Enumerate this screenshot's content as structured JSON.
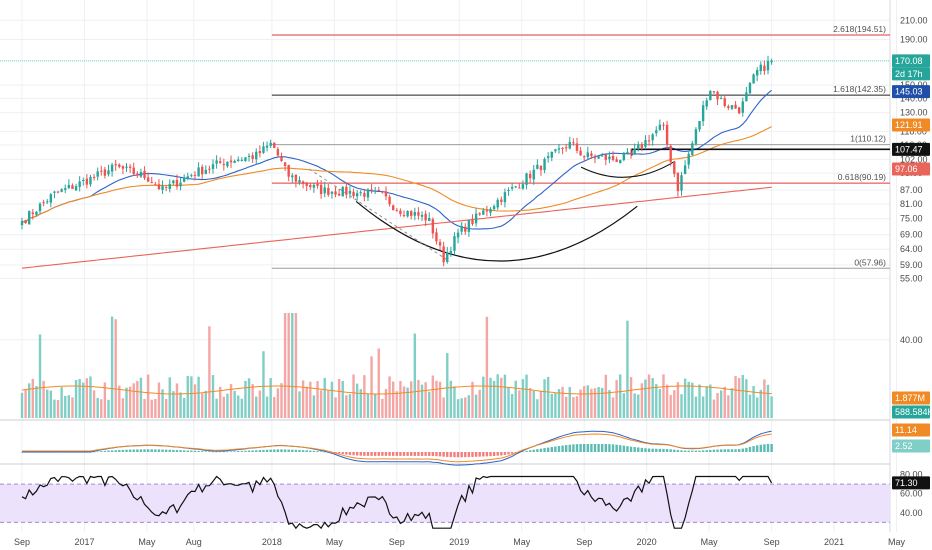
{
  "colors": {
    "up": "#26a69a",
    "down": "#ef5350",
    "vol_up": "#7fcfc6",
    "vol_down": "#f4a6a4",
    "ma_short": "#2e63c8",
    "ma_mid": "#f08a24",
    "ma_long": "#e8655a",
    "fib_red": "#e53935",
    "fib_black": "#222222",
    "rsi_fill": "#ece2fb",
    "rsi_band": "#a58ad6",
    "grid": "#eef0f3"
  },
  "price_tags": [
    {
      "label": "170.08",
      "value": 170.08,
      "color": "#26a69a"
    },
    {
      "label": "2d 17h",
      "value": 161.5,
      "color": "#26a69a"
    },
    {
      "label": "145.03",
      "value": 145.03,
      "color": "#1f4fa8"
    },
    {
      "label": "121.91",
      "value": 121.91,
      "color": "#f08a24"
    },
    {
      "label": "107.47",
      "value": 107.47,
      "color": "#111111"
    },
    {
      "label": "97.06",
      "value": 97.06,
      "color": "#e8655a"
    }
  ],
  "lower_tags": {
    "volume_ma": {
      "label": "1.877M",
      "color": "#f08a24"
    },
    "volume": {
      "label": "588.584K",
      "color": "#26a69a"
    },
    "macd": {
      "label": "11.14",
      "color": "#f08a24"
    },
    "signal": {
      "label": "2.52",
      "color": "#7fcfc6"
    },
    "rsi": {
      "label": "71.30",
      "color": "#111111"
    }
  },
  "fib_levels": [
    {
      "label": "2.618(194.51)",
      "value": 194.51,
      "color": "#e53935"
    },
    {
      "label": "1.618(142.35)",
      "value": 142.35,
      "color": "#222222"
    },
    {
      "label": "1(110.12)",
      "value": 110.12,
      "color": "#9e9e9e"
    },
    {
      "label": "0.618(90.19)",
      "value": 90.19,
      "color": "#e53935"
    },
    {
      "label": "0(57.96)",
      "value": 57.96,
      "color": "#9e9e9e"
    }
  ],
  "chart_data": {
    "type": "candlestick",
    "interval": "weekly",
    "scale": "log",
    "x_start": "2016-09",
    "x_end": "2021-08",
    "x_labels": [
      "Sep",
      "2017",
      "May",
      "Aug",
      "2018",
      "May",
      "Sep",
      "2019",
      "May",
      "Sep",
      "2020",
      "May",
      "Sep",
      "2021",
      "May"
    ],
    "y_ticks": [
      40.0,
      55.0,
      59.0,
      64.0,
      69.0,
      75.0,
      81.0,
      87.0,
      95.0,
      102.0,
      110.0,
      118.0,
      130.0,
      140.0,
      150.0,
      170.0,
      190.0,
      210.0
    ],
    "y_tick_labels": [
      "40.00",
      "55.00",
      "59.00",
      "64.00",
      "69.00",
      "75.00",
      "81.00",
      "87.00",
      "95.00",
      "102.00",
      "110.00",
      "118.00",
      "130.00",
      "140.00",
      "150.00",
      "170.00",
      "190.00",
      "210.00"
    ],
    "last_price": 170.08,
    "price_path": [
      {
        "date": "2016-09",
        "close": 74
      },
      {
        "date": "2016-11",
        "close": 85
      },
      {
        "date": "2017-01",
        "close": 91
      },
      {
        "date": "2017-03",
        "close": 98
      },
      {
        "date": "2017-05",
        "close": 93
      },
      {
        "date": "2017-06",
        "close": 87
      },
      {
        "date": "2017-08",
        "close": 95
      },
      {
        "date": "2017-10",
        "close": 101
      },
      {
        "date": "2017-12",
        "close": 104
      },
      {
        "date": "2018-01",
        "close": 111
      },
      {
        "date": "2018-02",
        "close": 94
      },
      {
        "date": "2018-04",
        "close": 87
      },
      {
        "date": "2018-06",
        "close": 86
      },
      {
        "date": "2018-08",
        "close": 85
      },
      {
        "date": "2018-09",
        "close": 79
      },
      {
        "date": "2018-11",
        "close": 75
      },
      {
        "date": "2018-12",
        "close": 61
      },
      {
        "date": "2019-01",
        "close": 70
      },
      {
        "date": "2019-03",
        "close": 80
      },
      {
        "date": "2019-05",
        "close": 91
      },
      {
        "date": "2019-07",
        "close": 104
      },
      {
        "date": "2019-08",
        "close": 111
      },
      {
        "date": "2019-09",
        "close": 104
      },
      {
        "date": "2019-11",
        "close": 102
      },
      {
        "date": "2019-12",
        "close": 104
      },
      {
        "date": "2020-02",
        "close": 122
      },
      {
        "date": "2020-03",
        "close": 88
      },
      {
        "date": "2020-04",
        "close": 113
      },
      {
        "date": "2020-05",
        "close": 148
      },
      {
        "date": "2020-06",
        "close": 136
      },
      {
        "date": "2020-07",
        "close": 132
      },
      {
        "date": "2020-08",
        "close": 160
      },
      {
        "date": "2020-09",
        "close": 170.08
      }
    ]
  }
}
